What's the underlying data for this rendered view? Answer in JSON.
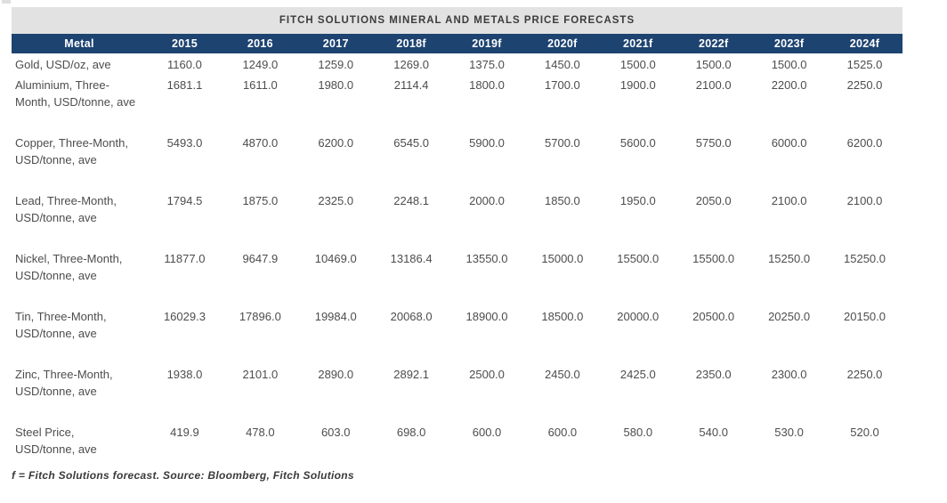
{
  "colors": {
    "header_bg": "#1d4370",
    "header_text": "#ffffff",
    "title_bg": "#e2e2e2",
    "body_text": "#4d4d4d"
  },
  "table": {
    "title": "FITCH SOLUTIONS MINERAL AND METALS PRICE FORECASTS",
    "columns": [
      "Metal",
      "2015",
      "2016",
      "2017",
      "2018f",
      "2019f",
      "2020f",
      "2021f",
      "2022f",
      "2023f",
      "2024f"
    ],
    "rows": [
      {
        "metal": "Gold, USD/oz, ave",
        "values": [
          "1160.0",
          "1249.0",
          "1259.0",
          "1269.0",
          "1375.0",
          "1450.0",
          "1500.0",
          "1500.0",
          "1500.0",
          "1525.0"
        ]
      },
      {
        "metal": "Aluminium, Three-Month, USD/tonne, ave",
        "values": [
          "1681.1",
          "1611.0",
          "1980.0",
          "2114.4",
          "1800.0",
          "1700.0",
          "1900.0",
          "2100.0",
          "2200.0",
          "2250.0"
        ]
      },
      {
        "metal": "Copper, Three-Month, USD/tonne, ave",
        "values": [
          "5493.0",
          "4870.0",
          "6200.0",
          "6545.0",
          "5900.0",
          "5700.0",
          "5600.0",
          "5750.0",
          "6000.0",
          "6200.0"
        ]
      },
      {
        "metal": "Lead, Three-Month, USD/tonne, ave",
        "values": [
          "1794.5",
          "1875.0",
          "2325.0",
          "2248.1",
          "2000.0",
          "1850.0",
          "1950.0",
          "2050.0",
          "2100.0",
          "2100.0"
        ]
      },
      {
        "metal": "Nickel, Three-Month, USD/tonne, ave",
        "values": [
          "11877.0",
          "9647.9",
          "10469.0",
          "13186.4",
          "13550.0",
          "15000.0",
          "15500.0",
          "15500.0",
          "15250.0",
          "15250.0"
        ]
      },
      {
        "metal": "Tin, Three-Month, USD/tonne, ave",
        "values": [
          "16029.3",
          "17896.0",
          "19984.0",
          "20068.0",
          "18900.0",
          "18500.0",
          "20000.0",
          "20500.0",
          "20250.0",
          "20150.0"
        ]
      },
      {
        "metal": "Zinc, Three-Month, USD/tonne, ave",
        "values": [
          "1938.0",
          "2101.0",
          "2890.0",
          "2892.1",
          "2500.0",
          "2450.0",
          "2425.0",
          "2350.0",
          "2300.0",
          "2250.0"
        ]
      },
      {
        "metal": "Steel Price, USD/tonne, ave",
        "values": [
          "419.9",
          "478.0",
          "603.0",
          "698.0",
          "600.0",
          "600.0",
          "580.0",
          "540.0",
          "530.0",
          "520.0"
        ]
      }
    ],
    "footnote": "f = Fitch Solutions forecast. Source: Bloomberg, Fitch Solutions"
  }
}
